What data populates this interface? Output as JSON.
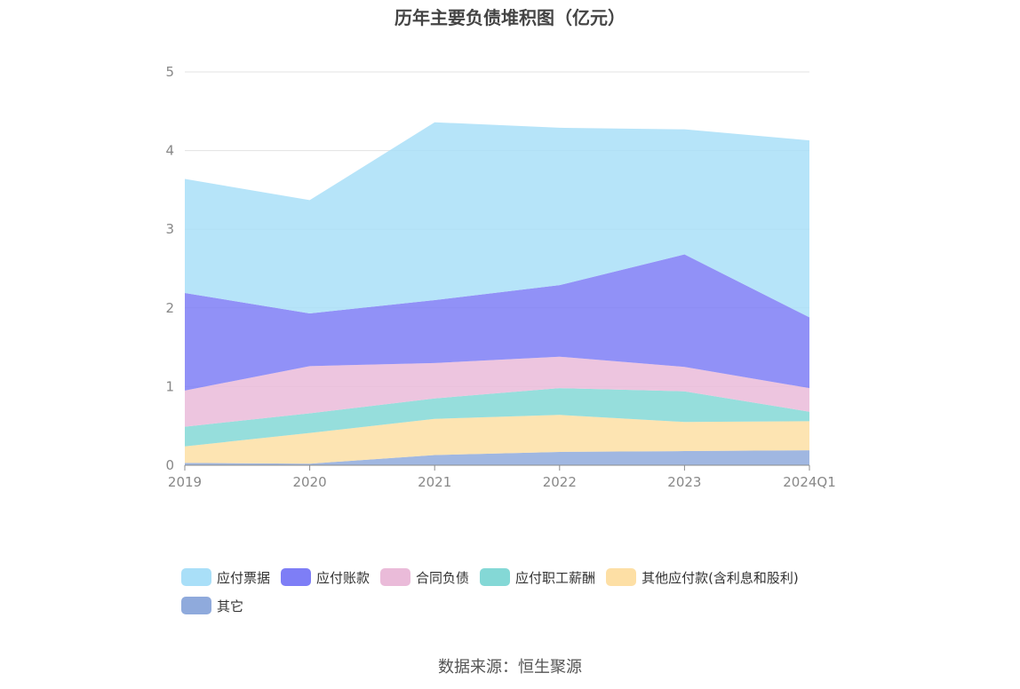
{
  "chart_data": {
    "type": "area",
    "stacked": true,
    "title": "历年主要负债堆积图（亿元）",
    "categories": [
      "2019",
      "2020",
      "2021",
      "2022",
      "2023",
      "2024Q1"
    ],
    "ylim": [
      0,
      5
    ],
    "yticks": [
      "0",
      "1",
      "2",
      "3",
      "4",
      "5"
    ],
    "grid": true,
    "legend_position": "bottom",
    "series": [
      {
        "name": "其它",
        "color": "#8FAADC",
        "values": [
          0.03,
          0.02,
          0.13,
          0.17,
          0.18,
          0.19
        ]
      },
      {
        "name": "其他应付款(含利息和股利)",
        "color": "#FDDFA5",
        "values": [
          0.21,
          0.39,
          0.46,
          0.47,
          0.37,
          0.37
        ]
      },
      {
        "name": "应付职工薪酬",
        "color": "#84D8D6",
        "values": [
          0.25,
          0.25,
          0.26,
          0.34,
          0.39,
          0.12
        ]
      },
      {
        "name": "合同负债",
        "color": "#EABBD9",
        "values": [
          0.46,
          0.6,
          0.45,
          0.4,
          0.31,
          0.3
        ]
      },
      {
        "name": "应付账款",
        "color": "#7E7EF6",
        "values": [
          1.24,
          0.67,
          0.8,
          0.91,
          1.43,
          0.9
        ]
      },
      {
        "name": "应付票据",
        "color": "#A9DFF8",
        "values": [
          1.45,
          1.44,
          2.26,
          2.0,
          1.59,
          2.25
        ]
      }
    ]
  },
  "legend_order": [
    {
      "name": "应付票据",
      "color": "#A9DFF8"
    },
    {
      "name": "应付账款",
      "color": "#7E7EF6"
    },
    {
      "name": "合同负债",
      "color": "#EABBD9"
    },
    {
      "name": "应付职工薪酬",
      "color": "#84D8D6"
    },
    {
      "name": "其他应付款(含利息和股利)",
      "color": "#FDDFA5"
    },
    {
      "name": "其它",
      "color": "#8FAADC"
    }
  ],
  "source_text": "数据来源：恒生聚源"
}
